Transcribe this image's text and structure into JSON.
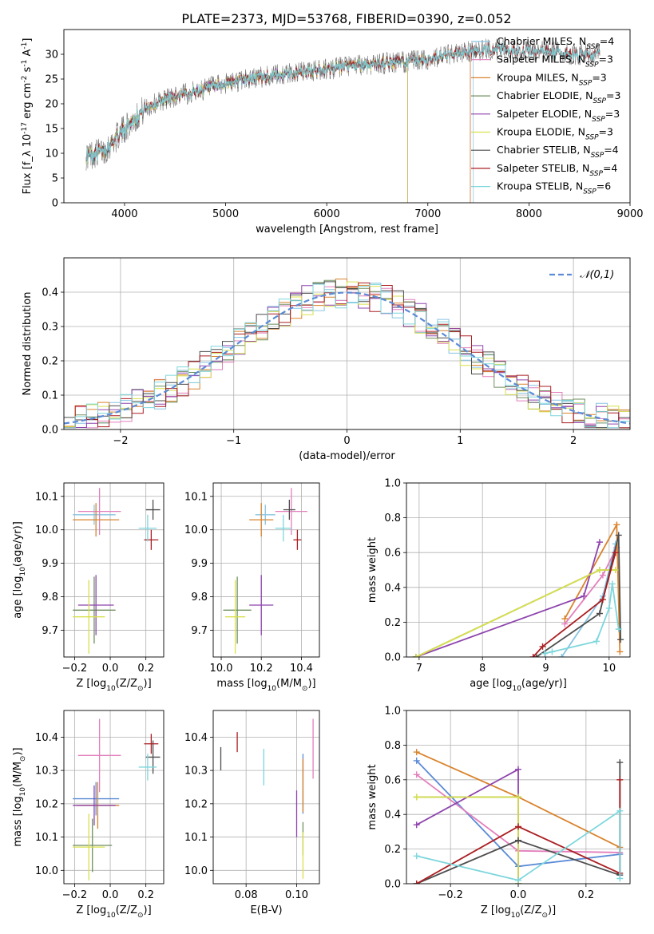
{
  "figure_title": "PLATE=2373, MJD=53768, FIBERID=0390, z=0.052",
  "colors": {
    "c0": "#87c4e2",
    "c1": "#e37fbc",
    "c2": "#d9832d",
    "c3": "#6f8f5e",
    "c4": "#8e44ad",
    "c5": "#d8e04c",
    "c6": "#4d4d4d",
    "c7": "#aa1e22",
    "c8": "#7dd6dc",
    "ref": "#5b8bd6",
    "grid": "#b0b0b0"
  },
  "chart_data": [
    {
      "id": "spectrum",
      "type": "line",
      "xlabel": "wavelength [Angstrom, rest frame]",
      "ylabel": "Flux [f_λ 10^-17 erg cm^-2 s^-1 A^-1]",
      "xlim": [
        3400,
        9000
      ],
      "ylim": [
        0,
        35
      ],
      "xticks": [
        4000,
        5000,
        6000,
        7000,
        8000,
        9000
      ],
      "yticks": [
        0,
        5,
        10,
        15,
        20,
        25,
        30
      ],
      "grid": false,
      "legend_position": "top-right",
      "continuum": {
        "x": [
          3620,
          3800,
          4000,
          4200,
          4400,
          4600,
          4800,
          5000,
          5200,
          5400,
          5600,
          5800,
          6000,
          6200,
          6400,
          6600,
          6800,
          7000,
          7200,
          7400,
          7600,
          7800,
          8000,
          8200,
          8400,
          8700
        ],
        "y": [
          9.5,
          10.5,
          15.0,
          19.0,
          21.0,
          22.0,
          23.0,
          24.0,
          25.0,
          25.5,
          26.0,
          26.5,
          27.0,
          27.5,
          28.0,
          28.3,
          28.5,
          29.0,
          29.8,
          30.5,
          31.0,
          31.0,
          30.5,
          30.5,
          30.0,
          30.0
        ]
      },
      "series": [
        {
          "name": "Chabrier MILES",
          "nssp": "4",
          "color_key": "c0",
          "xmax": 7450
        },
        {
          "name": "Salpeter MILES",
          "nssp": "3",
          "color_key": "c1",
          "xmax": 7420
        },
        {
          "name": "Kroupa MILES",
          "nssp": "3",
          "color_key": "c2",
          "xmax": 7420
        },
        {
          "name": "Chabrier ELODIE",
          "nssp": "3",
          "color_key": "c3",
          "xmax": 6800
        },
        {
          "name": "Salpeter ELODIE",
          "nssp": "3",
          "color_key": "c4",
          "xmax": 6800
        },
        {
          "name": "Kroupa ELODIE",
          "nssp": "3",
          "color_key": "c5",
          "xmax": 6800
        },
        {
          "name": "Chabrier STELIB",
          "nssp": "4",
          "color_key": "c6",
          "xmax": 8700
        },
        {
          "name": "Salpeter STELIB",
          "nssp": "4",
          "color_key": "c7",
          "xmax": 8700
        },
        {
          "name": "Kroupa STELIB",
          "nssp": "6",
          "color_key": "c8",
          "xmax": 8700
        }
      ]
    },
    {
      "id": "residuals",
      "type": "line",
      "xlabel": "(data-model)/error",
      "ylabel": "Normed distribution",
      "xlim": [
        -2.5,
        2.5
      ],
      "ylim": [
        0,
        0.5
      ],
      "xticks": [
        -2,
        -1,
        0,
        1,
        2
      ],
      "yticks": [
        0.0,
        0.1,
        0.2,
        0.3,
        0.4
      ],
      "grid": true,
      "bin_width": 0.1,
      "reference_curve": {
        "name": "𝒩(0,1)",
        "mean": 0,
        "sigma": 1,
        "color_key": "ref"
      },
      "legend_position": "top-right"
    },
    {
      "id": "age_vs_Z",
      "type": "scatter",
      "xlabel": "Z [log10(Z/Z⊙)]",
      "ylabel": "age  [log10(age/yr)]",
      "xlim": [
        -0.26,
        0.3
      ],
      "ylim": [
        9.62,
        10.14
      ],
      "xticks": [
        -0.2,
        0.0,
        0.2
      ],
      "yticks": [
        9.7,
        9.8,
        9.9,
        10.0,
        10.1
      ],
      "grid": true,
      "points": [
        {
          "color_key": "c0",
          "x": -0.09,
          "y": 10.045,
          "xerr": 0.12,
          "yerr": 0.03
        },
        {
          "color_key": "c1",
          "x": -0.06,
          "y": 10.055,
          "xerr": 0.12,
          "yerr": 0.07
        },
        {
          "color_key": "c2",
          "x": -0.08,
          "y": 10.03,
          "xerr": 0.13,
          "yerr": 0.05
        },
        {
          "color_key": "c3",
          "x": -0.09,
          "y": 9.76,
          "xerr": 0.12,
          "yerr": 0.1
        },
        {
          "color_key": "c4",
          "x": -0.08,
          "y": 9.775,
          "xerr": 0.1,
          "yerr": 0.09
        },
        {
          "color_key": "c5",
          "x": -0.12,
          "y": 9.74,
          "xerr": 0.09,
          "yerr": 0.11
        },
        {
          "color_key": "c6",
          "x": 0.24,
          "y": 10.06,
          "xerr": 0.04,
          "yerr": 0.03
        },
        {
          "color_key": "c7",
          "x": 0.23,
          "y": 9.97,
          "xerr": 0.04,
          "yerr": 0.03
        },
        {
          "color_key": "c8",
          "x": 0.21,
          "y": 10.005,
          "xerr": 0.05,
          "yerr": 0.04
        }
      ]
    },
    {
      "id": "age_vs_mass",
      "type": "scatter",
      "xlabel": "mass [log10(M/M⊙)]",
      "ylabel": "",
      "xlim": [
        9.96,
        10.49
      ],
      "ylim": [
        9.62,
        10.14
      ],
      "xticks": [
        10.0,
        10.2,
        10.4
      ],
      "yticks": [
        9.7,
        9.8,
        9.9,
        10.0,
        10.1
      ],
      "grid": true,
      "points": [
        {
          "color_key": "c0",
          "x": 10.22,
          "y": 10.045,
          "xerr": 0.05,
          "yerr": 0.03
        },
        {
          "color_key": "c1",
          "x": 10.35,
          "y": 10.055,
          "xerr": 0.08,
          "yerr": 0.07
        },
        {
          "color_key": "c2",
          "x": 10.2,
          "y": 10.03,
          "xerr": 0.06,
          "yerr": 0.05
        },
        {
          "color_key": "c3",
          "x": 10.08,
          "y": 9.76,
          "xerr": 0.07,
          "yerr": 0.1
        },
        {
          "color_key": "c4",
          "x": 10.2,
          "y": 9.775,
          "xerr": 0.06,
          "yerr": 0.09
        },
        {
          "color_key": "c5",
          "x": 10.07,
          "y": 9.74,
          "xerr": 0.05,
          "yerr": 0.11
        },
        {
          "color_key": "c6",
          "x": 10.34,
          "y": 10.06,
          "xerr": 0.03,
          "yerr": 0.03
        },
        {
          "color_key": "c7",
          "x": 10.38,
          "y": 9.97,
          "xerr": 0.02,
          "yerr": 0.03
        },
        {
          "color_key": "c8",
          "x": 10.31,
          "y": 10.005,
          "xerr": 0.04,
          "yerr": 0.04
        }
      ]
    },
    {
      "id": "mass_weight_vs_age",
      "type": "line",
      "xlabel": "age  [log10(age/yr)]",
      "ylabel": "mass weight",
      "xlim": [
        6.8,
        10.33
      ],
      "ylim": [
        0,
        1
      ],
      "xticks": [
        7,
        8,
        9,
        10
      ],
      "yticks": [
        0.0,
        0.2,
        0.4,
        0.6,
        0.8,
        1.0
      ],
      "grid": true,
      "series": [
        {
          "color_key": "c0",
          "x": [
            9.25,
            9.9,
            10.1
          ],
          "y": [
            0.0,
            0.35,
            0.65
          ]
        },
        {
          "color_key": "c1",
          "x": [
            9.3,
            9.9,
            10.12
          ],
          "y": [
            0.19,
            0.47,
            0.63
          ]
        },
        {
          "color_key": "c2",
          "x": [
            9.3,
            10.12,
            10.17
          ],
          "y": [
            0.22,
            0.76,
            0.03
          ]
        },
        {
          "color_key": "c3",
          "x": [
            6.95,
            9.85,
            10.1
          ],
          "y": [
            0.0,
            0.5,
            0.5
          ]
        },
        {
          "color_key": "c4",
          "x": [
            6.95,
            9.6,
            9.85
          ],
          "y": [
            0.0,
            0.35,
            0.66
          ]
        },
        {
          "color_key": "c5",
          "x": [
            6.95,
            9.85,
            10.1
          ],
          "y": [
            0.0,
            0.5,
            0.5
          ]
        },
        {
          "color_key": "c6",
          "x": [
            8.85,
            9.85,
            10.15,
            10.18
          ],
          "y": [
            0.0,
            0.25,
            0.7,
            0.1
          ]
        },
        {
          "color_key": "c7",
          "x": [
            8.8,
            8.95,
            9.9,
            10.1
          ],
          "y": [
            0.0,
            0.06,
            0.33,
            0.6
          ]
        },
        {
          "color_key": "c8",
          "x": [
            8.98,
            9.1,
            9.8,
            10.0,
            10.05,
            10.15
          ],
          "y": [
            0.02,
            0.03,
            0.09,
            0.28,
            0.42,
            0.16
          ]
        }
      ]
    },
    {
      "id": "mass_vs_Z",
      "type": "scatter",
      "xlabel": "Z [log10(Z/Z⊙)]",
      "ylabel": "mass [log10(M/M⊙)]",
      "xlim": [
        -0.26,
        0.3
      ],
      "ylim": [
        9.96,
        10.48
      ],
      "xticks": [
        -0.2,
        0.0,
        0.2
      ],
      "yticks": [
        10.0,
        10.1,
        10.2,
        10.3,
        10.4
      ],
      "grid": true,
      "points": [
        {
          "color_key": "ref",
          "x": -0.08,
          "y": 10.215,
          "xerr": 0.13,
          "yerr": 0.05
        },
        {
          "color_key": "c1",
          "x": -0.06,
          "y": 10.345,
          "xerr": 0.12,
          "yerr": 0.11
        },
        {
          "color_key": "c2",
          "x": -0.07,
          "y": 10.195,
          "xerr": 0.12,
          "yerr": 0.07
        },
        {
          "color_key": "c3",
          "x": -0.1,
          "y": 10.075,
          "xerr": 0.11,
          "yerr": 0.08
        },
        {
          "color_key": "c4",
          "x": -0.09,
          "y": 10.195,
          "xerr": 0.12,
          "yerr": 0.06
        },
        {
          "color_key": "c5",
          "x": -0.12,
          "y": 10.07,
          "xerr": 0.09,
          "yerr": 0.1
        },
        {
          "color_key": "c6",
          "x": 0.24,
          "y": 10.34,
          "xerr": 0.04,
          "yerr": 0.05
        },
        {
          "color_key": "c7",
          "x": 0.23,
          "y": 10.38,
          "xerr": 0.04,
          "yerr": 0.03
        },
        {
          "color_key": "c8",
          "x": 0.21,
          "y": 10.31,
          "xerr": 0.05,
          "yerr": 0.04
        }
      ]
    },
    {
      "id": "mass_vs_ebv",
      "type": "scatter",
      "xlabel": "E(B-V)",
      "ylabel": "",
      "xlim": [
        0.067,
        0.109
      ],
      "ylim": [
        9.96,
        10.48
      ],
      "xticks": [
        0.08,
        0.1
      ],
      "yticks": [
        10.0,
        10.1,
        10.2,
        10.3,
        10.4
      ],
      "grid": true,
      "points": [
        {
          "color_key": "c6",
          "x": 0.07,
          "y": 10.335,
          "yerr": 0.035
        },
        {
          "color_key": "c7",
          "x": 0.0765,
          "y": 10.385,
          "yerr": 0.03
        },
        {
          "color_key": "c8",
          "x": 0.087,
          "y": 10.31,
          "yerr": 0.055
        },
        {
          "color_key": "c4",
          "x": 0.1,
          "y": 10.17,
          "yerr": 0.07
        },
        {
          "color_key": "ref",
          "x": 0.1025,
          "y": 10.26,
          "yerr": 0.09
        },
        {
          "color_key": "c2",
          "x": 0.1025,
          "y": 10.255,
          "yerr": 0.08
        },
        {
          "color_key": "c3",
          "x": 0.1025,
          "y": 10.095,
          "yerr": 0.05
        },
        {
          "color_key": "c5",
          "x": 0.1025,
          "y": 10.045,
          "yerr": 0.07
        },
        {
          "color_key": "c1",
          "x": 0.1065,
          "y": 10.365,
          "yerr": 0.09
        }
      ]
    },
    {
      "id": "mass_weight_vs_Z",
      "type": "line",
      "xlabel": "Z [log10(Z/Z⊙)]",
      "ylabel": "mass weight",
      "xlim": [
        -0.33,
        0.33
      ],
      "ylim": [
        0,
        1
      ],
      "xticks": [
        -0.2,
        0.0,
        0.2
      ],
      "yticks": [
        0.0,
        0.2,
        0.4,
        0.6,
        0.8,
        1.0
      ],
      "grid": true,
      "series": [
        {
          "color_key": "ref",
          "x": [
            -0.3,
            0.0,
            0.3
          ],
          "y": [
            0.71,
            0.1,
            0.17
          ]
        },
        {
          "color_key": "c1",
          "x": [
            -0.3,
            0.0,
            0.3
          ],
          "y": [
            0.63,
            0.19,
            0.18
          ]
        },
        {
          "color_key": "c2",
          "x": [
            -0.3,
            0.0,
            0.3
          ],
          "y": [
            0.76,
            0.5,
            0.21
          ]
        },
        {
          "color_key": "c3",
          "x": [
            -0.3,
            0.0,
            0.0
          ],
          "y": [
            0.5,
            0.5,
            0.0
          ]
        },
        {
          "color_key": "c4",
          "x": [
            -0.3,
            0.0,
            0.0
          ],
          "y": [
            0.34,
            0.66,
            0.0
          ]
        },
        {
          "color_key": "c5",
          "x": [
            -0.3,
            0.0,
            0.0
          ],
          "y": [
            0.5,
            0.5,
            0.0
          ]
        },
        {
          "color_key": "c6",
          "x": [
            -0.3,
            0.0,
            0.3,
            0.3
          ],
          "y": [
            0.0,
            0.25,
            0.05,
            0.7
          ]
        },
        {
          "color_key": "c7",
          "x": [
            -0.3,
            0.0,
            0.3,
            0.3
          ],
          "y": [
            0.0,
            0.33,
            0.06,
            0.6
          ]
        },
        {
          "color_key": "c8",
          "x": [
            -0.3,
            0.0,
            0.3,
            0.3
          ],
          "y": [
            0.16,
            0.02,
            0.42,
            0.03
          ]
        }
      ]
    }
  ]
}
